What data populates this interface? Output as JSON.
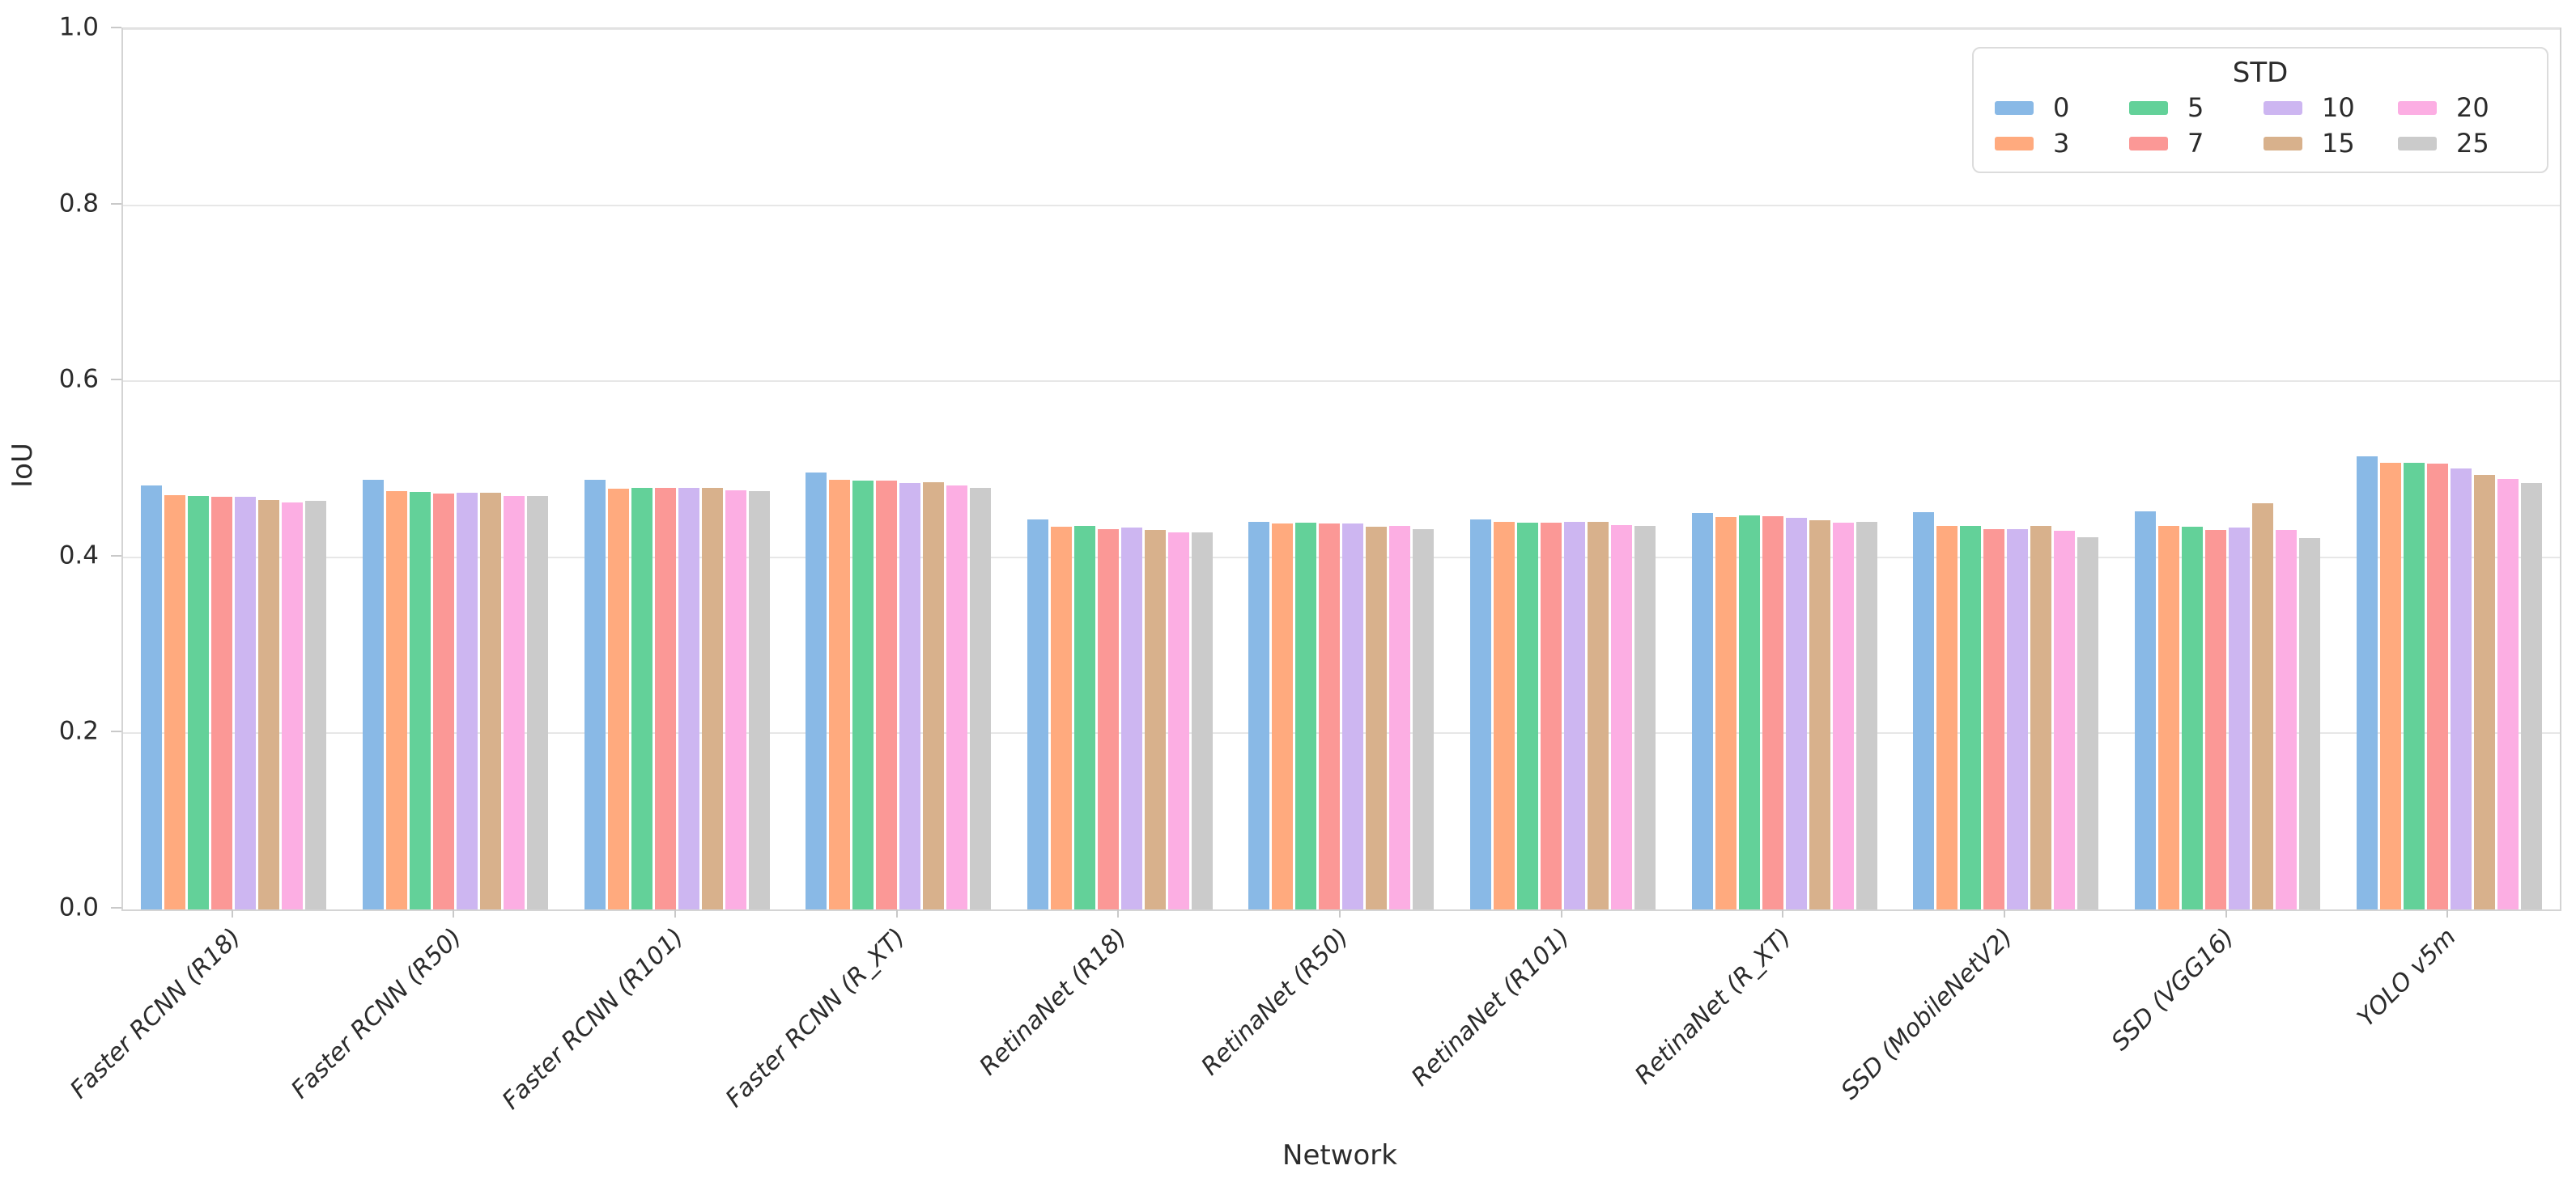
{
  "chart_data": {
    "type": "bar",
    "title": "",
    "xlabel": "Network",
    "ylabel": "IoU",
    "ylim": [
      0.0,
      1.0
    ],
    "yticks": [
      "0.0",
      "0.2",
      "0.4",
      "0.6",
      "0.8",
      "1.0"
    ],
    "grid": true,
    "legend_title": "STD",
    "legend_position": "upper right",
    "categories": [
      "Faster RCNN (R18)",
      "Faster RCNN (R50)",
      "Faster RCNN (R101)",
      "Faster RCNN (R_XT)",
      "RetinaNet (R18)",
      "RetinaNet (R50)",
      "RetinaNet (R101)",
      "RetinaNet (R_XT)",
      "SSD (MobileNetV2)",
      "SSD (VGG16)",
      "YOLO v5m"
    ],
    "series": [
      {
        "name": "0",
        "color": "#89b9e6",
        "values": [
          0.482,
          0.488,
          0.488,
          0.496,
          0.443,
          0.44,
          0.443,
          0.45,
          0.451,
          0.452,
          0.515
        ]
      },
      {
        "name": "3",
        "color": "#ffaa7e",
        "values": [
          0.471,
          0.475,
          0.478,
          0.488,
          0.435,
          0.438,
          0.44,
          0.446,
          0.436,
          0.436,
          0.507
        ]
      },
      {
        "name": "5",
        "color": "#63d199",
        "values": [
          0.47,
          0.474,
          0.479,
          0.487,
          0.436,
          0.439,
          0.439,
          0.448,
          0.436,
          0.435,
          0.507
        ]
      },
      {
        "name": "7",
        "color": "#fb9896",
        "values": [
          0.469,
          0.472,
          0.479,
          0.487,
          0.432,
          0.438,
          0.439,
          0.447,
          0.432,
          0.431,
          0.506
        ]
      },
      {
        "name": "10",
        "color": "#cdb6f1",
        "values": [
          0.469,
          0.473,
          0.479,
          0.484,
          0.434,
          0.438,
          0.44,
          0.445,
          0.432,
          0.434,
          0.501
        ]
      },
      {
        "name": "15",
        "color": "#d8b18c",
        "values": [
          0.465,
          0.473,
          0.479,
          0.485,
          0.431,
          0.435,
          0.44,
          0.442,
          0.436,
          0.461,
          0.494
        ]
      },
      {
        "name": "20",
        "color": "#fcaee3",
        "values": [
          0.462,
          0.47,
          0.476,
          0.482,
          0.428,
          0.436,
          0.437,
          0.439,
          0.43,
          0.431,
          0.489
        ]
      },
      {
        "name": "25",
        "color": "#cbcbcb",
        "values": [
          0.464,
          0.47,
          0.475,
          0.479,
          0.428,
          0.432,
          0.436,
          0.44,
          0.423,
          0.422,
          0.484
        ]
      }
    ]
  }
}
